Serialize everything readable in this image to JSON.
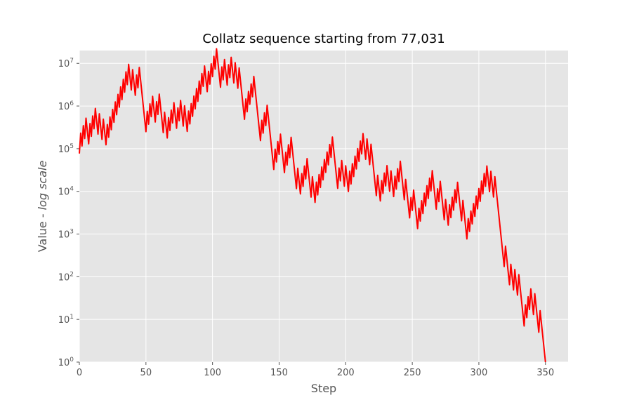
{
  "chart_data": {
    "type": "line",
    "title": "Collatz sequence starting from 77,031",
    "xlabel": "Step",
    "ylabel_main": "Value - ",
    "ylabel_italic": "log scale",
    "xlim": [
      0,
      367
    ],
    "ylim_log10": [
      0,
      7.3
    ],
    "x_ticks": [
      0,
      50,
      100,
      150,
      200,
      250,
      300,
      350
    ],
    "y_tick_base": "10",
    "y_tick_exponents": [
      0,
      1,
      2,
      3,
      4,
      5,
      6,
      7
    ],
    "grid": true,
    "style": "ggplot",
    "colors": {
      "background": "#e5e5e5",
      "grid": "#ffffff",
      "line": "#ff0000",
      "tick": "#555555"
    },
    "series": [
      {
        "start": 77031,
        "values_rule": "collatz",
        "x_from": 0,
        "x_to": 350
      }
    ]
  }
}
